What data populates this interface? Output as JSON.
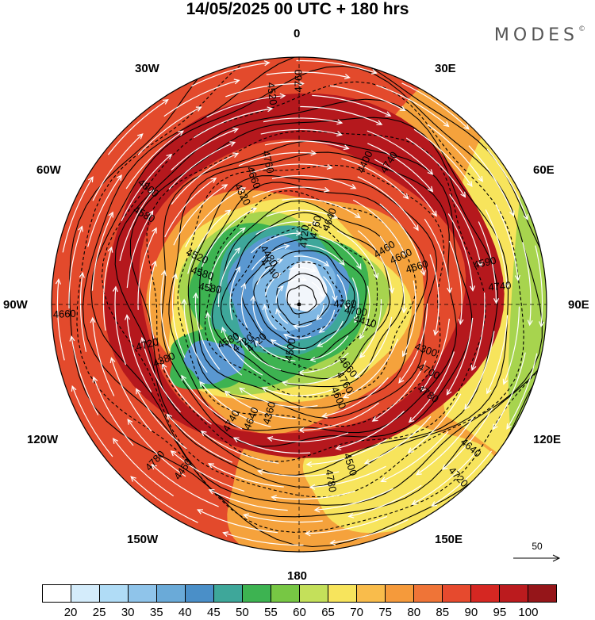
{
  "header": {
    "title": "14/05/2025  00 UTC  + 180 hrs",
    "brand": "MODES",
    "brand_mark": "©"
  },
  "longitude_labels": {
    "n": "0",
    "nne": "30E",
    "ene": "60E",
    "e": "90E",
    "ese": "120E",
    "sse": "150E",
    "s": "180",
    "ssw": "150W",
    "wsw": "120W",
    "w": "90W",
    "wnw": "60W",
    "nnw": "30W"
  },
  "reference_vector": {
    "label": "50"
  },
  "contour_labels": [
    "4760",
    "4720",
    "4720",
    "4660",
    "4580",
    "4460",
    "4360",
    "4320",
    "4300",
    "4380",
    "4400",
    "4500",
    "4580",
    "4590",
    "4460",
    "4520",
    "4640",
    "4660",
    "4680",
    "4700",
    "4740",
    "4700",
    "4720",
    "4760",
    "4760",
    "4580",
    "4600",
    "4640",
    "4660",
    "4700",
    "4720",
    "4740",
    "4780",
    "4800",
    "4740",
    "4780",
    "4760",
    "4720",
    "4700",
    "4640",
    "4500",
    "4480",
    "4410",
    "4580",
    "4640",
    "4600",
    "4520",
    "4660",
    "4740",
    "4760",
    "4780"
  ],
  "colorbar": {
    "colors": [
      "#ffffff",
      "#d4ecfb",
      "#b0dcf6",
      "#8fc4ea",
      "#6aaad8",
      "#4a8fc8",
      "#3ea79a",
      "#3db351",
      "#77c744",
      "#c4e05a",
      "#f7e45c",
      "#f9bc4b",
      "#f59a3b",
      "#ef7437",
      "#e64a2e",
      "#d52722",
      "#bb1b1e",
      "#951519"
    ],
    "tick_labels": [
      "20",
      "25",
      "30",
      "35",
      "40",
      "45",
      "50",
      "55",
      "60",
      "65",
      "70",
      "75",
      "80",
      "85",
      "90",
      "95",
      "100"
    ]
  },
  "map": {
    "projection": "polar-stereographic-north",
    "field_colors": {
      "core": "#f2f6fb",
      "inner_blue": "#7fb7e3",
      "blue": "#5a98d1",
      "teal": "#3ea79a",
      "green": "#3db351",
      "light_green": "#a7d44e",
      "yellow": "#f7e45c",
      "orange": "#f5a23c",
      "red": "#e34a2c",
      "dark_red": "#b5181d"
    }
  }
}
